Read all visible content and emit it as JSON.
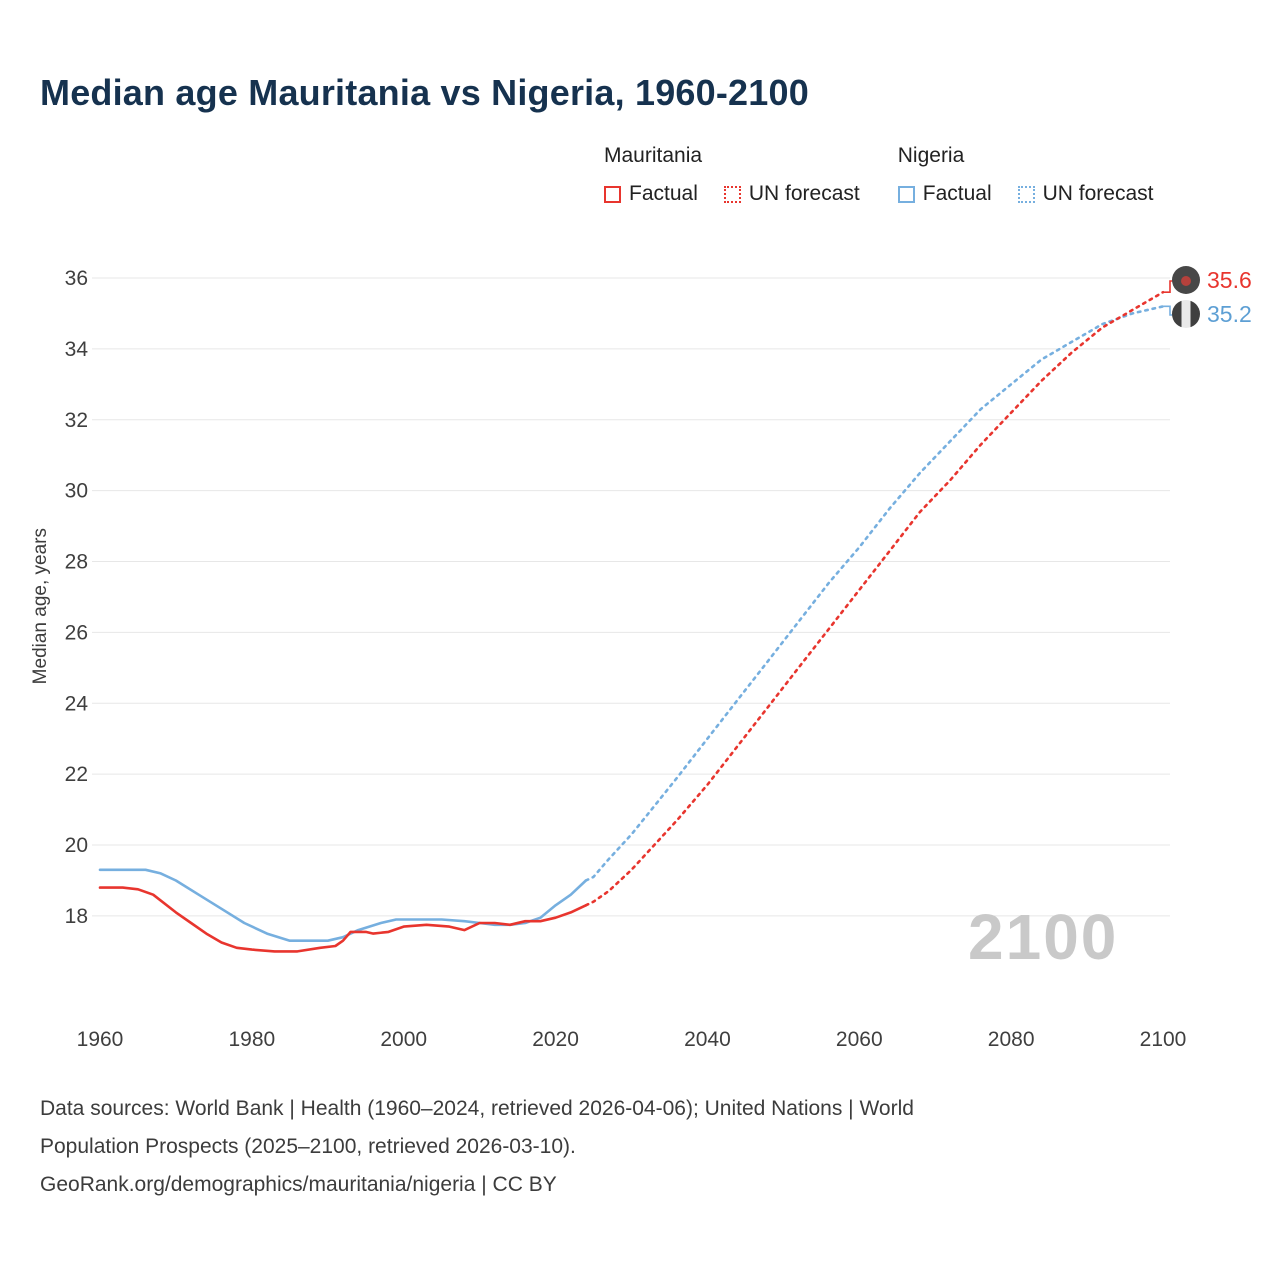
{
  "title": "Median age Mauritania vs Nigeria, 1960-2100",
  "legend": {
    "mauritania_label": "Mauritania",
    "nigeria_label": "Nigeria",
    "factual_label": "Factual",
    "forecast_label": "UN forecast"
  },
  "colors": {
    "mauritania": "#e8352e",
    "nigeria": "#76afdf",
    "grid": "#e7e7e7",
    "tick_text": "#3f3f3f",
    "title_text": "#16324f",
    "watermark": "#c9c9c9"
  },
  "ylabel": "Median age, years",
  "watermark": "2100",
  "end_labels": {
    "mauritania": "35.6",
    "nigeria": "35.2"
  },
  "footer": {
    "line1": "Data sources: World Bank | Health (1960–2024, retrieved 2026-04-06); United Nations | World",
    "line2": "Population Prospects (2025–2100, retrieved 2026-03-10).",
    "line3": "GeoRank.org/demographics/mauritania/nigeria | CC BY"
  },
  "chart_data": {
    "type": "line",
    "title": "Median age Mauritania vs Nigeria, 1960-2100",
    "xlabel": "",
    "ylabel": "Median age, years",
    "xlim": [
      1960,
      2100
    ],
    "ylim": [
      16.8,
      36.5
    ],
    "xticks": [
      1960,
      1980,
      2000,
      2020,
      2040,
      2060,
      2080,
      2100
    ],
    "yticks": [
      18,
      20,
      22,
      24,
      26,
      28,
      30,
      32,
      34,
      36
    ],
    "grid": "horizontal",
    "legend_position": "top",
    "series": [
      {
        "name": "Mauritania Factual",
        "style": "solid",
        "color_key": "mauritania",
        "points": [
          [
            1960,
            18.8
          ],
          [
            1963,
            18.8
          ],
          [
            1965,
            18.75
          ],
          [
            1967,
            18.6
          ],
          [
            1970,
            18.1
          ],
          [
            1972,
            17.8
          ],
          [
            1974,
            17.5
          ],
          [
            1976,
            17.25
          ],
          [
            1978,
            17.1
          ],
          [
            1980,
            17.05
          ],
          [
            1983,
            17.0
          ],
          [
            1986,
            17.0
          ],
          [
            1989,
            17.1
          ],
          [
            1991,
            17.15
          ],
          [
            1992,
            17.3
          ],
          [
            1993,
            17.55
          ],
          [
            1995,
            17.55
          ],
          [
            1996,
            17.5
          ],
          [
            1998,
            17.55
          ],
          [
            2000,
            17.7
          ],
          [
            2003,
            17.75
          ],
          [
            2006,
            17.7
          ],
          [
            2008,
            17.6
          ],
          [
            2010,
            17.8
          ],
          [
            2012,
            17.8
          ],
          [
            2014,
            17.75
          ],
          [
            2016,
            17.85
          ],
          [
            2018,
            17.85
          ],
          [
            2020,
            17.95
          ],
          [
            2022,
            18.1
          ],
          [
            2024,
            18.3
          ]
        ]
      },
      {
        "name": "Mauritania UN forecast",
        "style": "dashed",
        "color_key": "mauritania",
        "points": [
          [
            2024,
            18.3
          ],
          [
            2025,
            18.4
          ],
          [
            2027,
            18.7
          ],
          [
            2030,
            19.3
          ],
          [
            2033,
            20.0
          ],
          [
            2036,
            20.7
          ],
          [
            2040,
            21.7
          ],
          [
            2044,
            22.8
          ],
          [
            2048,
            23.9
          ],
          [
            2052,
            25.0
          ],
          [
            2056,
            26.1
          ],
          [
            2060,
            27.2
          ],
          [
            2064,
            28.3
          ],
          [
            2068,
            29.4
          ],
          [
            2072,
            30.3
          ],
          [
            2076,
            31.3
          ],
          [
            2080,
            32.2
          ],
          [
            2084,
            33.1
          ],
          [
            2088,
            33.9
          ],
          [
            2092,
            34.6
          ],
          [
            2096,
            35.1
          ],
          [
            2100,
            35.6
          ]
        ]
      },
      {
        "name": "Nigeria Factual",
        "style": "solid",
        "color_key": "nigeria",
        "points": [
          [
            1960,
            19.3
          ],
          [
            1964,
            19.3
          ],
          [
            1966,
            19.3
          ],
          [
            1968,
            19.2
          ],
          [
            1970,
            19.0
          ],
          [
            1973,
            18.6
          ],
          [
            1976,
            18.2
          ],
          [
            1979,
            17.8
          ],
          [
            1982,
            17.5
          ],
          [
            1985,
            17.3
          ],
          [
            1988,
            17.3
          ],
          [
            1990,
            17.3
          ],
          [
            1992,
            17.4
          ],
          [
            1994,
            17.6
          ],
          [
            1997,
            17.8
          ],
          [
            1999,
            17.9
          ],
          [
            2002,
            17.9
          ],
          [
            2005,
            17.9
          ],
          [
            2008,
            17.85
          ],
          [
            2010,
            17.8
          ],
          [
            2012,
            17.75
          ],
          [
            2014,
            17.75
          ],
          [
            2016,
            17.8
          ],
          [
            2018,
            17.95
          ],
          [
            2020,
            18.3
          ],
          [
            2022,
            18.6
          ],
          [
            2024,
            19.0
          ]
        ]
      },
      {
        "name": "Nigeria UN forecast",
        "style": "dashed",
        "color_key": "nigeria",
        "points": [
          [
            2024,
            19.0
          ],
          [
            2025,
            19.1
          ],
          [
            2027,
            19.6
          ],
          [
            2030,
            20.3
          ],
          [
            2033,
            21.1
          ],
          [
            2036,
            21.9
          ],
          [
            2040,
            23.0
          ],
          [
            2044,
            24.1
          ],
          [
            2048,
            25.2
          ],
          [
            2052,
            26.3
          ],
          [
            2056,
            27.4
          ],
          [
            2060,
            28.4
          ],
          [
            2064,
            29.5
          ],
          [
            2068,
            30.5
          ],
          [
            2072,
            31.4
          ],
          [
            2076,
            32.3
          ],
          [
            2080,
            33.0
          ],
          [
            2084,
            33.7
          ],
          [
            2088,
            34.2
          ],
          [
            2092,
            34.7
          ],
          [
            2096,
            35.0
          ],
          [
            2100,
            35.2
          ]
        ]
      }
    ],
    "end_values": {
      "mauritania": 35.6,
      "nigeria": 35.2
    }
  }
}
